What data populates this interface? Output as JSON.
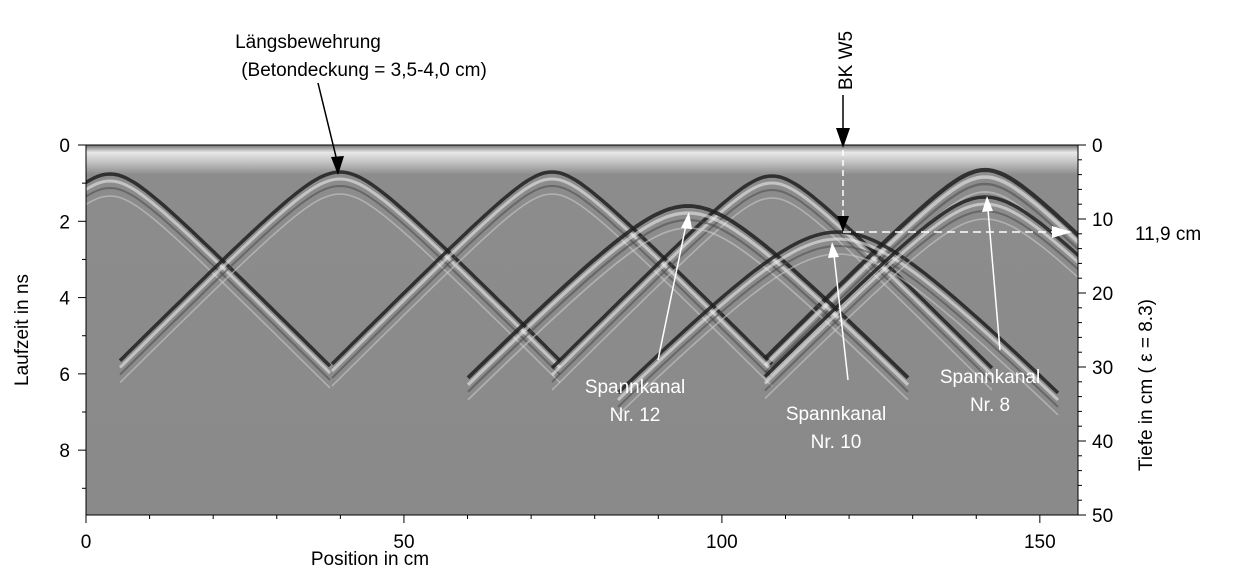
{
  "chart_data": {
    "type": "radargram",
    "x_label": "Position in cm",
    "y_label": "Laufzeit in ns",
    "y2_label": "Tiefe in cm ( ε = 8.3)",
    "xlim": [
      0,
      156
    ],
    "xticks": [
      0,
      50,
      100,
      150
    ],
    "ylim": [
      0,
      9.7
    ],
    "yticks": [
      0,
      2,
      4,
      6,
      8
    ],
    "y2lim": [
      0,
      50
    ],
    "y2ticks": [
      0,
      10,
      20,
      30,
      40,
      50
    ],
    "annotations": [
      {
        "lines": [
          "Längsbewehrung",
          "(Betondeckung = 3,5-4,0 cm)"
        ]
      },
      {
        "lines": [
          "BK W5"
        ]
      },
      {
        "lines": [
          "11,9 cm"
        ]
      },
      {
        "lines": [
          "Spannkanal",
          "Nr. 12"
        ]
      },
      {
        "lines": [
          "Spannkanal",
          "Nr. 10"
        ]
      },
      {
        "lines": [
          "Spannkanal",
          "Nr. 8"
        ]
      }
    ]
  }
}
